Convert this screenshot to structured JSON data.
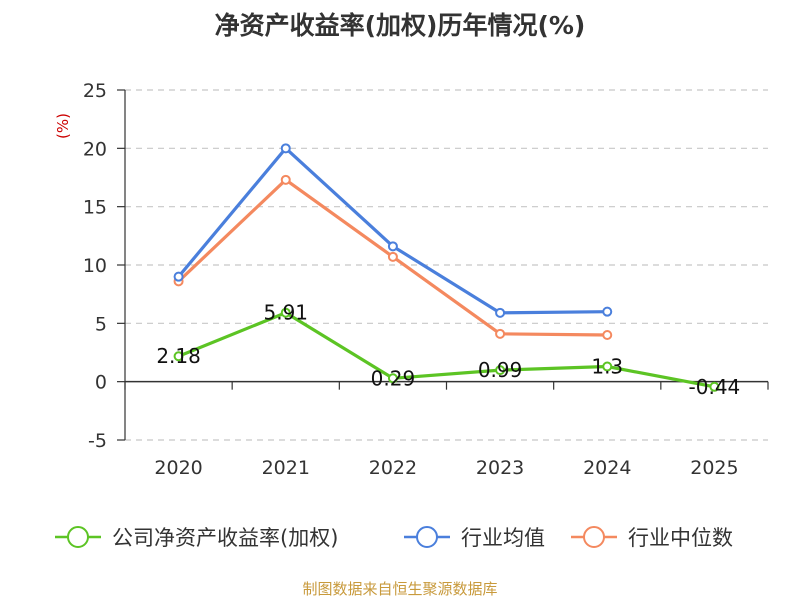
{
  "title": "净资产收益率(加权)历年情况(%)",
  "source": "制图数据来自恒生聚源数据库",
  "chart_data": {
    "type": "line",
    "title": "净资产收益率(加权)历年情况(%)",
    "unit_label": "(%)",
    "categories": [
      "2020",
      "2021",
      "2022",
      "2023",
      "2024",
      "2025"
    ],
    "ylim": [
      -5,
      25
    ],
    "yticks": [
      -5,
      0,
      5,
      10,
      15,
      20,
      25
    ],
    "grid": true,
    "legend_position": "bottom",
    "series": [
      {
        "name": "公司净资产收益率(加权)",
        "color": "#5cc424",
        "values": [
          2.18,
          5.91,
          0.29,
          0.99,
          1.3,
          -0.44
        ],
        "show_labels": true,
        "labels": [
          "2.18",
          "5.91",
          "0.29",
          "0.99",
          "1.3",
          "-0.44"
        ]
      },
      {
        "name": "行业均值",
        "color": "#4a7fdc",
        "values": [
          9.0,
          20.0,
          11.6,
          5.9,
          6.0,
          null
        ],
        "show_labels": false
      },
      {
        "name": "行业中位数",
        "color": "#f4895f",
        "values": [
          8.6,
          17.3,
          10.7,
          4.1,
          4.0,
          null
        ],
        "show_labels": false
      }
    ]
  }
}
